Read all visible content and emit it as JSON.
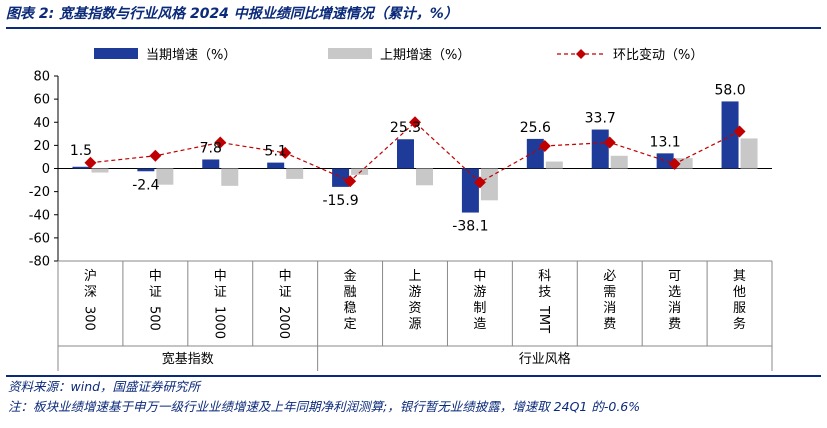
{
  "figure": {
    "title": "图表 2:  宽基指数与行业风格 2024 中报业绩同比增速情况（累计，%）",
    "source": "资料来源：wind，国盛证券研究所",
    "note": "注：板块业绩增速基于申万一级行业业绩增速及上年同期净利润测算;，银行暂无业绩披露，增速取 24Q1 的-0.6%"
  },
  "colors": {
    "current": "#1f3b99",
    "previous": "#c8c8c8",
    "qoq": "#c00000",
    "title": "#0b2a7a"
  },
  "chart_data": {
    "type": "bar",
    "categories": [
      "沪深300",
      "中证500",
      "中证1000",
      "中证2000",
      "金融稳定",
      "上游资源",
      "中游制造",
      "科技TMT",
      "必需消费",
      "可选消费",
      "其他服务"
    ],
    "groups": [
      {
        "label": "宽基指数",
        "span": [
          0,
          3
        ]
      },
      {
        "label": "行业风格",
        "span": [
          4,
          10
        ]
      }
    ],
    "series": [
      {
        "name": "当期增速（%）",
        "type": "bar",
        "values": [
          1.5,
          -2.4,
          7.8,
          5.1,
          -15.9,
          25.3,
          -38.1,
          25.6,
          33.7,
          13.1,
          58.0
        ]
      },
      {
        "name": "上期增速（%）",
        "type": "bar",
        "values": [
          -3.5,
          -14.0,
          -15.0,
          -9.0,
          -5.5,
          -14.5,
          -27.5,
          6.0,
          11.0,
          9.0,
          26.0
        ]
      },
      {
        "name": "环比变动（%）",
        "type": "line",
        "values": [
          5.0,
          11.0,
          22.5,
          13.5,
          -11.0,
          40.0,
          -12.0,
          19.5,
          22.5,
          4.0,
          32.0
        ]
      }
    ],
    "data_labels": [
      "1.5",
      "-2.4",
      "7.8",
      "5.1",
      "-15.9",
      "25.3",
      "-38.1",
      "25.6",
      "33.7",
      "13.1",
      "58.0"
    ],
    "ylim": [
      -80,
      80
    ],
    "yticks": [
      80,
      60,
      40,
      20,
      0,
      -20,
      -40,
      -60,
      -80
    ],
    "legend_position": "top",
    "grid": false
  }
}
